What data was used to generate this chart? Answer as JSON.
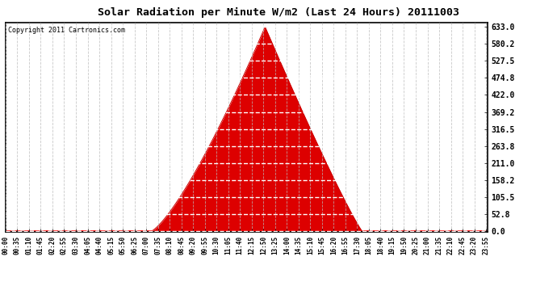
{
  "title": "Solar Radiation per Minute W/m2 (Last 24 Hours) 20111003",
  "copyright": "Copyright 2011 Cartronics.com",
  "background_color": "#ffffff",
  "plot_bg_color": "#ffffff",
  "fill_color": "#dd0000",
  "line_color": "#cc0000",
  "dashed_line_color": "#ff0000",
  "grid_color": "#bbbbbb",
  "ytick_labels": [
    0.0,
    52.8,
    105.5,
    158.2,
    211.0,
    263.8,
    316.5,
    369.2,
    422.0,
    474.8,
    527.5,
    580.2,
    633.0
  ],
  "ymax": 633.0,
  "ymin": 0.0,
  "peak_value": 633.0,
  "sunrise_min": 435,
  "sunset_min": 1065,
  "peak_min": 775,
  "total_minutes": 1440,
  "xtick_step": 35
}
